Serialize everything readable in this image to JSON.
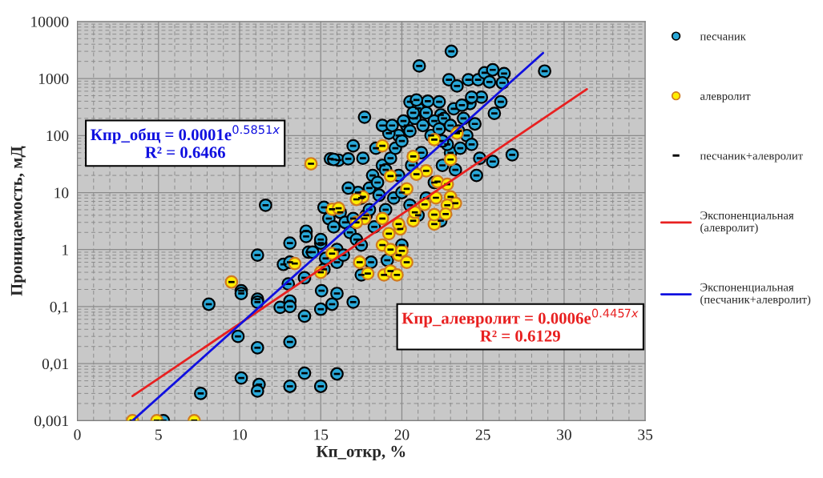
{
  "chart_data": {
    "type": "scatter",
    "xlabel": "Кп_откр, %",
    "ylabel": "Проницаемость, мД",
    "log": "y",
    "grid": true,
    "legend": "right",
    "xlim": [
      0,
      35
    ],
    "xticks": [
      0,
      5,
      10,
      15,
      20,
      25,
      30,
      35
    ],
    "ylim": [
      0.001,
      10000
    ],
    "yticks": [
      {
        "value": 0.001,
        "label": "0,001"
      },
      {
        "value": 0.01,
        "label": "0,01"
      },
      {
        "value": 0.1,
        "label": "0,1"
      },
      1,
      10,
      100,
      1000,
      10000
    ],
    "annotations": [
      "Кпр_алевролит = 0.0006e$^{0.4457x}$\nR² = 0.6129",
      "Кпр_общ = 0.0001e$^{0.5851x}$\nR² = 0.6466"
    ],
    "series": [
      {
        "name": "песчаник",
        "marker": "circle",
        "color": "#29a8d8",
        "x": [
          23.05,
          21.07,
          28.8,
          22.9,
          23.4,
          24.1,
          24.7,
          25.1,
          25.6,
          26.3,
          25.4,
          26.2,
          26.1,
          25.7,
          24.9,
          24.2,
          20.5,
          22.3,
          23.2,
          22.4,
          23.7,
          17.7,
          24.3,
          26.8,
          25.6,
          24.6,
          15.6,
          16.1,
          16.7,
          17.0,
          11.1,
          14.1,
          14.1,
          13.1,
          12.7,
          13.1,
          14.25,
          14.0,
          13.0,
          10.1,
          10.1,
          11.1,
          11.1,
          13.1,
          12.5,
          13.1,
          14.0,
          15.0,
          8.1,
          9.9,
          11.1,
          13.1,
          14.0,
          10.1,
          11.2,
          11.1,
          13.1,
          7.6,
          15.0,
          5.3,
          15.0,
          15.05,
          16.0,
          15.7,
          17.0,
          16.0,
          19.1,
          20.0,
          18.1,
          17.5,
          16.0,
          15.2,
          22.4,
          11.6,
          15.2,
          15.5,
          15.8,
          16.2,
          16.5,
          16.8,
          17.3,
          17.5,
          17.8,
          18.0,
          18.2,
          18.5,
          18.8,
          19.0,
          19.3,
          19.6,
          19.8,
          20.0,
          20.3,
          20.5,
          20.8,
          21.0,
          21.3,
          21.5,
          21.8,
          22.0,
          22.3,
          22.6,
          23.0,
          23.5,
          23.8,
          24.0,
          24.3,
          24.5,
          17.2,
          16.0,
          15.0,
          14.5,
          15.3,
          16.4,
          17.5,
          18.3,
          19.0,
          19.5,
          20.0,
          20.5,
          21.0,
          21.5,
          22.0,
          22.5,
          23.0,
          23.3,
          22.8,
          21.2,
          20.6,
          19.8,
          18.6,
          18.0,
          17.0,
          16.7,
          17.6,
          18.4,
          19.2,
          20.1,
          18.8,
          15.8,
          21.6,
          20.9,
          22.5,
          23.6,
          24.8,
          19.4,
          20.7
        ],
        "values": [
          3000,
          1660,
          1350,
          950,
          740,
          950,
          950,
          1260,
          1420,
          1220,
          870,
          840,
          390,
          245,
          470,
          365,
          390,
          390,
          295,
          230,
          340,
          210,
          470,
          46,
          35,
          20,
          39,
          37,
          39,
          66,
          0.8,
          2.1,
          1.7,
          1.3,
          0.55,
          0.6,
          0.9,
          0.32,
          0.25,
          0.19,
          0.17,
          0.135,
          0.12,
          0.125,
          0.097,
          0.1,
          0.068,
          0.09,
          0.11,
          0.03,
          0.019,
          0.024,
          0.0068,
          0.0056,
          0.0043,
          0.0033,
          0.004,
          0.003,
          0.004,
          0.001,
          1.3,
          0.19,
          0.17,
          0.11,
          0.12,
          0.0066,
          0.65,
          1.2,
          0.6,
          0.36,
          0.6,
          0.45,
          3.2,
          6,
          5.5,
          3.5,
          2.5,
          4.5,
          3,
          2,
          10,
          8,
          4,
          12,
          20,
          15,
          30,
          25,
          40,
          60,
          100,
          80,
          150,
          120,
          200,
          300,
          150,
          250,
          100,
          180,
          130,
          200,
          150,
          120,
          200,
          100,
          70,
          160,
          1.5,
          1,
          1.5,
          0.9,
          0.7,
          0.8,
          1.2,
          2.5,
          5,
          8,
          10,
          6,
          4,
          8,
          15,
          30,
          50,
          25,
          70,
          50,
          30,
          20,
          9,
          5,
          3.5,
          12,
          40,
          60,
          110,
          180,
          150,
          38,
          400,
          420,
          80,
          60,
          40,
          150,
          250
        ]
      },
      {
        "name": "алевролит",
        "marker": "circle",
        "color": "#ffee00",
        "x": [
          3.4,
          4.9,
          7.2,
          9.5,
          13.4,
          15.0,
          15.7,
          17.4,
          17.9,
          18.9,
          19.3,
          19.7,
          19.8,
          18.8,
          19.3,
          20.0,
          20.3,
          19.2,
          19.9,
          22.0,
          20.7,
          18.8,
          14.4,
          18.8,
          22.0,
          23.4,
          20.7,
          23.0,
          19.3,
          20.3,
          21.5,
          20.9,
          22.2,
          22.8,
          17.6,
          17.2,
          15.7,
          16.1,
          17.7,
          22.1,
          23.0,
          23.3,
          22.8,
          20.8,
          21.4,
          22.0,
          19.8,
          17.2,
          22.7
        ],
        "values": [
          0.001,
          0.001,
          0.001,
          0.27,
          0.57,
          0.4,
          0.85,
          0.6,
          0.38,
          0.36,
          0.42,
          0.36,
          0.8,
          1.2,
          1.0,
          0.95,
          0.6,
          1.9,
          2.3,
          2.8,
          3.2,
          3.5,
          32,
          66,
          85,
          110,
          43,
          38,
          19.5,
          11.6,
          24,
          21,
          15.5,
          14,
          8.4,
          7.6,
          5.1,
          5.3,
          3.5,
          8.1,
          8.4,
          6.5,
          6.0,
          4.5,
          6.2,
          4.1,
          2.8,
          3.0,
          4.2
        ]
      },
      {
        "name": "песчаник+алевролит",
        "color": "#000000",
        "x": [
          23.05,
          21.07,
          28.8,
          22.9,
          23.4,
          24.1,
          24.7,
          25.1,
          25.6,
          26.3,
          25.4,
          26.2,
          26.1,
          25.7,
          24.9,
          24.2,
          20.5,
          22.3,
          23.2,
          22.4,
          23.7,
          17.7,
          24.3,
          26.8,
          25.6,
          24.6,
          15.6,
          16.1,
          16.7,
          17.0,
          11.1,
          14.1,
          14.1,
          13.1,
          12.7,
          13.1,
          14.25,
          14.0,
          13.0,
          10.1,
          10.1,
          11.1,
          11.1,
          13.1,
          12.5,
          13.1,
          14.0,
          15.0,
          8.1,
          9.9,
          11.1,
          13.1,
          14.0,
          10.1,
          11.2,
          11.1,
          13.1,
          7.6,
          15.0,
          5.3,
          15.0,
          15.05,
          16.0,
          15.7,
          17.0,
          16.0,
          19.1,
          20.0,
          18.1,
          17.5,
          16.0,
          15.2,
          22.4,
          11.6,
          15.2,
          15.5,
          15.8,
          16.2,
          16.5,
          16.8,
          17.3,
          17.5,
          17.8,
          18.0,
          18.2,
          18.5,
          18.8,
          19.0,
          19.3,
          19.6,
          19.8,
          20.0,
          20.3,
          20.5,
          20.8,
          21.0,
          21.3,
          21.5,
          21.8,
          22.0,
          22.3,
          22.6,
          23.0,
          23.5,
          23.8,
          24.0,
          24.3,
          24.5,
          17.2,
          16.0,
          15.0,
          14.5,
          15.3,
          16.4,
          17.5,
          18.3,
          19.0,
          19.5,
          20.0,
          20.5,
          21.0,
          21.5,
          22.0,
          22.5,
          23.0,
          23.3,
          22.8,
          21.2,
          20.6,
          19.8,
          18.6,
          18.0,
          17.0,
          16.7,
          17.6,
          18.4,
          19.2,
          20.1,
          18.8,
          15.8,
          21.6,
          20.9,
          22.5,
          23.6,
          24.8,
          19.4,
          20.7,
          3.4,
          4.9,
          7.2,
          9.5,
          13.4,
          15.0,
          15.7,
          17.4,
          17.9,
          18.9,
          19.3,
          19.7,
          19.8,
          18.8,
          19.3,
          20.0,
          20.3,
          19.2,
          19.9,
          22.0,
          20.7,
          18.8,
          14.4,
          18.8,
          22.0,
          23.4,
          20.7,
          23.0,
          19.3,
          20.3,
          21.5,
          20.9,
          22.2,
          22.8,
          17.6,
          17.2,
          15.7,
          16.1,
          17.7,
          22.1,
          23.0,
          23.3,
          22.8,
          20.8,
          21.4,
          22.0,
          19.8,
          17.2,
          22.7
        ],
        "values": [
          3000,
          1660,
          1350,
          950,
          740,
          950,
          950,
          1260,
          1420,
          1220,
          870,
          840,
          390,
          245,
          470,
          365,
          390,
          390,
          295,
          230,
          340,
          210,
          470,
          46,
          35,
          20,
          39,
          37,
          39,
          66,
          0.8,
          2.1,
          1.7,
          1.3,
          0.55,
          0.6,
          0.9,
          0.32,
          0.25,
          0.19,
          0.17,
          0.135,
          0.12,
          0.125,
          0.097,
          0.1,
          0.068,
          0.09,
          0.11,
          0.03,
          0.019,
          0.024,
          0.0068,
          0.0056,
          0.0043,
          0.0033,
          0.004,
          0.003,
          0.004,
          0.001,
          1.3,
          0.19,
          0.17,
          0.11,
          0.12,
          0.0066,
          0.65,
          1.2,
          0.6,
          0.36,
          0.6,
          0.45,
          3.2,
          6,
          5.5,
          3.5,
          2.5,
          4.5,
          3,
          2,
          10,
          8,
          4,
          12,
          20,
          15,
          30,
          25,
          40,
          60,
          100,
          80,
          150,
          120,
          200,
          300,
          150,
          250,
          100,
          180,
          130,
          200,
          150,
          120,
          200,
          100,
          70,
          160,
          1.5,
          1,
          1.5,
          0.9,
          0.7,
          0.8,
          1.2,
          2.5,
          5,
          8,
          10,
          6,
          4,
          8,
          15,
          30,
          50,
          25,
          70,
          50,
          30,
          20,
          9,
          5,
          3.5,
          12,
          40,
          60,
          110,
          180,
          150,
          38,
          400,
          420,
          80,
          60,
          40,
          150,
          250,
          0.001,
          0.001,
          0.001,
          0.27,
          0.57,
          0.4,
          0.85,
          0.6,
          0.38,
          0.36,
          0.42,
          0.36,
          0.8,
          1.2,
          1.0,
          0.95,
          0.6,
          1.9,
          2.3,
          2.8,
          3.2,
          3.5,
          32,
          66,
          85,
          110,
          43,
          38,
          19.5,
          11.6,
          24,
          21,
          15.5,
          14,
          8.4,
          7.6,
          5.1,
          5.3,
          3.5,
          8.1,
          8.4,
          6.5,
          6.0,
          4.5,
          6.2,
          4.1,
          2.8,
          3.0,
          4.2
        ]
      },
      {
        "name": "Экспоненциальная (алевролит)",
        "type": "line",
        "color": "#e82020",
        "x": [
          3.4,
          31.4
        ],
        "values": [
          0.0027,
          650
        ]
      },
      {
        "name": "Экспоненциальная (песчаник+алевролит)",
        "type": "line",
        "color": "#1010e0",
        "x": [
          3.4,
          28.7
        ],
        "values": [
          0.001,
          2800
        ]
      }
    ]
  }
}
